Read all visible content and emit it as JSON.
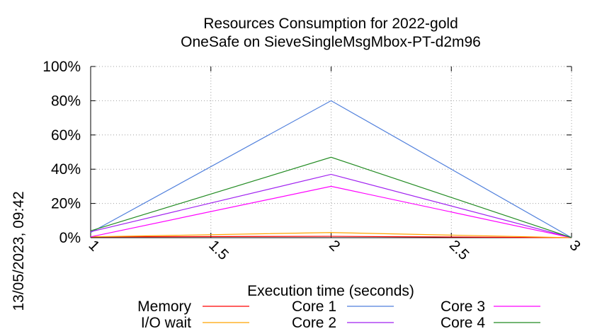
{
  "chart_data": {
    "type": "line",
    "title": "Resources Consumption for 2022-gold",
    "subtitle": "OneSafe on SieveSingleMsgMbox-PT-d2m96",
    "xlabel": "Execution time (seconds)",
    "ylabel": "",
    "side_label": "13/05/2023, 09:42",
    "xlim": [
      1,
      3
    ],
    "ylim": [
      0,
      100
    ],
    "x_ticks": [
      1,
      1.5,
      2,
      2.5,
      3
    ],
    "y_ticks": [
      0,
      20,
      40,
      60,
      80,
      100
    ],
    "y_tick_suffix": "%",
    "grid": true,
    "legend_position": "bottom",
    "series": [
      {
        "name": "Memory",
        "color": "#ff0000",
        "x": [
          1,
          2,
          3
        ],
        "y": [
          0.5,
          0.8,
          0
        ]
      },
      {
        "name": "I/O wait",
        "color": "#ffa500",
        "x": [
          1,
          2,
          3
        ],
        "y": [
          0.5,
          3,
          0
        ]
      },
      {
        "name": "Core 1",
        "color": "#4f7fdc",
        "x": [
          1,
          2,
          3
        ],
        "y": [
          3,
          80,
          0
        ]
      },
      {
        "name": "Core 2",
        "color": "#a020f0",
        "x": [
          1,
          2,
          3
        ],
        "y": [
          3.5,
          37,
          0
        ]
      },
      {
        "name": "Core 3",
        "color": "#ff00ff",
        "x": [
          1,
          2,
          3
        ],
        "y": [
          0.5,
          30,
          0
        ]
      },
      {
        "name": "Core 4",
        "color": "#228b22",
        "x": [
          1,
          2,
          3
        ],
        "y": [
          4,
          47,
          0
        ]
      }
    ]
  }
}
